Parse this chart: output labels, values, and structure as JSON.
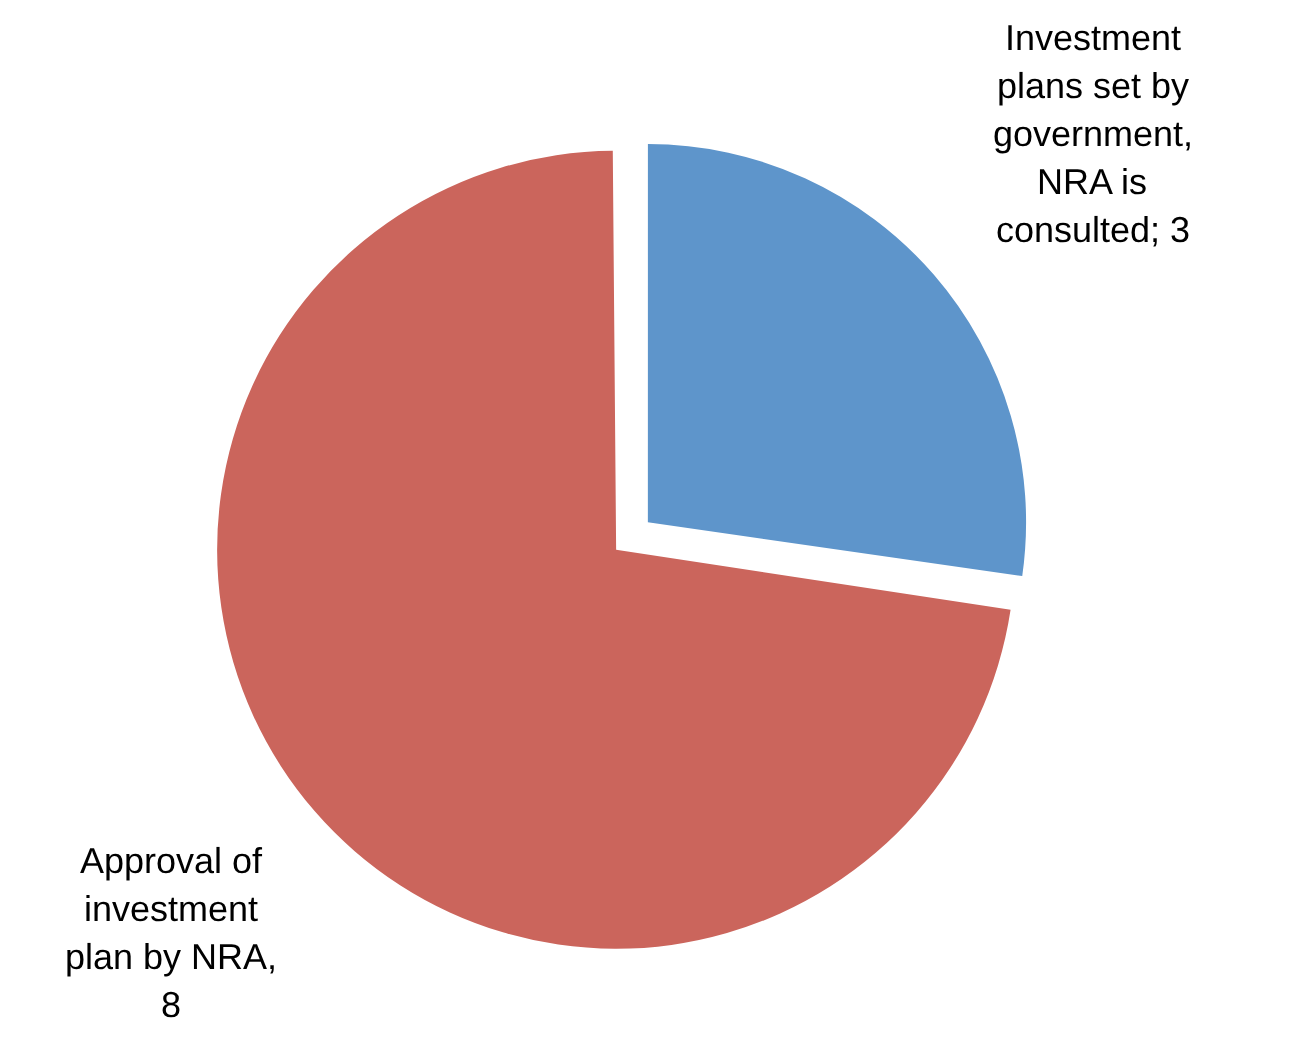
{
  "chart_data": {
    "type": "pie",
    "categories": [
      "Investment plans set by government, NRA is consulted",
      "Approval of investment plan by NRA"
    ],
    "values": [
      3,
      8
    ],
    "value_labels": [
      "; 3",
      ", 8"
    ],
    "colors": [
      "#5e95cb",
      "#cb655c"
    ],
    "legend": false
  }
}
